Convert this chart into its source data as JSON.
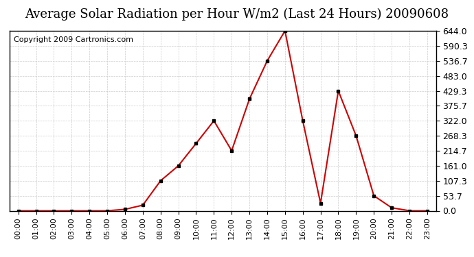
{
  "title": "Average Solar Radiation per Hour W/m2 (Last 24 Hours) 20090608",
  "copyright": "Copyright 2009 Cartronics.com",
  "x_labels": [
    "00:00",
    "01:00",
    "02:00",
    "03:00",
    "04:00",
    "05:00",
    "06:00",
    "07:00",
    "08:00",
    "09:00",
    "10:00",
    "11:00",
    "12:00",
    "13:00",
    "14:00",
    "15:00",
    "16:00",
    "17:00",
    "18:00",
    "19:00",
    "20:00",
    "21:00",
    "22:00",
    "23:00"
  ],
  "y_values": [
    0.0,
    0.0,
    0.0,
    0.0,
    0.0,
    0.0,
    5.0,
    20.0,
    107.3,
    161.0,
    241.0,
    322.0,
    215.0,
    400.0,
    536.7,
    644.0,
    322.0,
    26.8,
    429.3,
    268.3,
    53.7,
    10.7,
    0.0,
    0.0
  ],
  "line_color": "#cc0000",
  "marker_color": "#000000",
  "bg_color": "#ffffff",
  "plot_bg_color": "#ffffff",
  "grid_color": "#cccccc",
  "title_fontsize": 13,
  "copyright_fontsize": 8,
  "tick_fontsize": 9,
  "ylim": [
    0.0,
    644.0
  ],
  "yticks": [
    0.0,
    53.7,
    107.3,
    161.0,
    214.7,
    268.3,
    322.0,
    375.7,
    429.3,
    483.0,
    536.7,
    590.3,
    644.0
  ]
}
